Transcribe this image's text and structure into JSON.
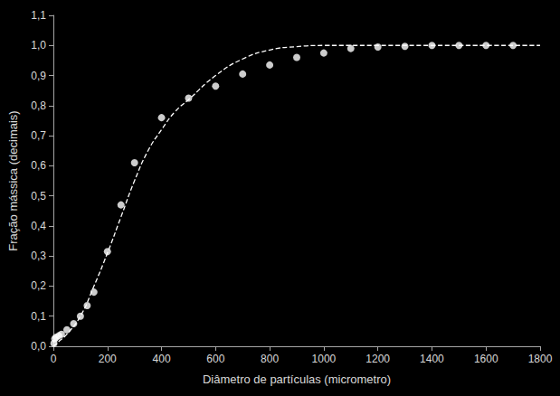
{
  "chart_data": {
    "type": "scatter",
    "x_label": "Diâmetro de partículas (micrometro)",
    "y_label": "Fração mássica (decimais)",
    "xlim": [
      0,
      1800
    ],
    "xticks": [
      0,
      200,
      400,
      600,
      800,
      1000,
      1200,
      1400,
      1600,
      1800
    ],
    "ylim": [
      0,
      1.1
    ],
    "yticks": [
      {
        "value": 0,
        "label": "0,0"
      },
      {
        "value": 0.1,
        "label": "0,1"
      },
      {
        "value": 0.2,
        "label": "0,2"
      },
      {
        "value": 0.3,
        "label": "0,3"
      },
      {
        "value": 0.4,
        "label": "0,4"
      },
      {
        "value": 0.5,
        "label": "0,5"
      },
      {
        "value": 0.6,
        "label": "0,6"
      },
      {
        "value": 0.7,
        "label": "0,7"
      },
      {
        "value": 0.8,
        "label": "0,8"
      },
      {
        "value": 0.9,
        "label": "0,9"
      },
      {
        "value": 1.0,
        "label": "1,0"
      },
      {
        "value": 1.1,
        "label": "1,1"
      }
    ],
    "grid": false,
    "series": [
      {
        "type": "scatter",
        "color": "#ffffff",
        "marker": "circle",
        "x": [
          2,
          5,
          10,
          20,
          30,
          50,
          75,
          100,
          125,
          150,
          200,
          250,
          300,
          400,
          500,
          600,
          700,
          800,
          900,
          1000,
          1100,
          1200,
          1300,
          1400,
          1500,
          1600,
          1700
        ],
        "values": [
          0.01,
          0.025,
          0.03,
          0.035,
          0.04,
          0.055,
          0.075,
          0.1,
          0.135,
          0.18,
          0.315,
          0.47,
          0.61,
          0.76,
          0.825,
          0.865,
          0.905,
          0.935,
          0.96,
          0.975,
          0.99,
          0.995,
          0.997,
          1.0,
          1.0,
          1.0,
          1.0
        ]
      },
      {
        "type": "line",
        "color": "#ffffff",
        "line_style": "dashed",
        "x": [
          0,
          25,
          50,
          100,
          150,
          200,
          250,
          300,
          350,
          400,
          450,
          500,
          600,
          700,
          800,
          900,
          1000,
          1200,
          1400,
          1600,
          1800
        ],
        "values": [
          0,
          0.02,
          0.04,
          0.1,
          0.2,
          0.31,
          0.43,
          0.55,
          0.65,
          0.72,
          0.78,
          0.82,
          0.9,
          0.955,
          0.985,
          0.996,
          1.0,
          1.0,
          1.0,
          1.0,
          1.0
        ]
      }
    ]
  }
}
